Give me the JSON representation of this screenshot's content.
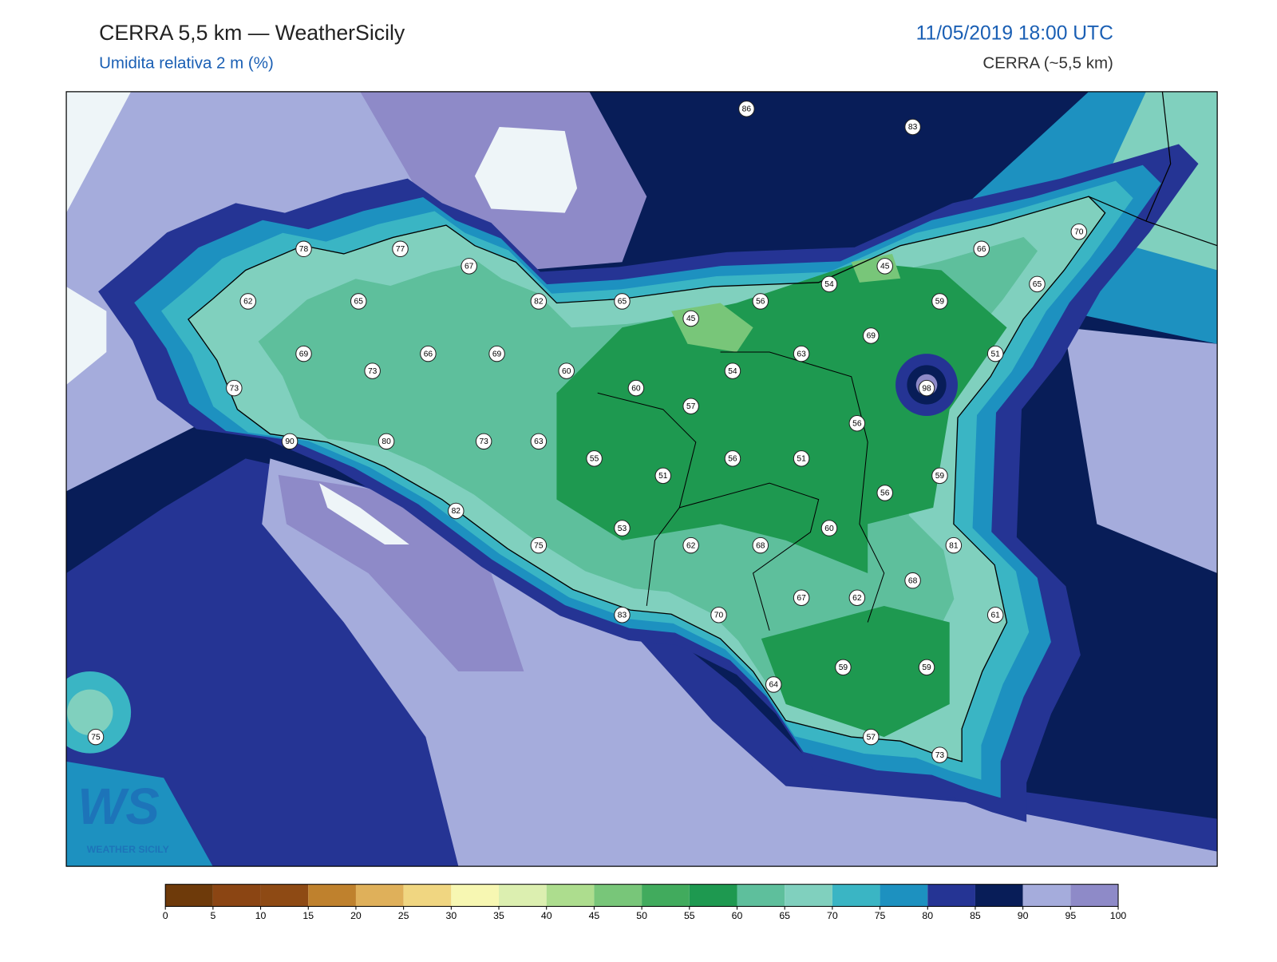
{
  "header": {
    "title": "CERRA 5,5 km — WeatherSicily",
    "subtitle": "Umidita relativa 2 m (%)",
    "datetime": "11/05/2019 18:00 UTC",
    "model": "CERRA (~5,5 km)"
  },
  "logo": {
    "text": "WS",
    "subtext": "WEATHER SICILY"
  },
  "map": {
    "stations": [
      86,
      83,
      78,
      77,
      67,
      70,
      66,
      45,
      54,
      65,
      62,
      65,
      82,
      65,
      56,
      59,
      45,
      69,
      69,
      66,
      69,
      63,
      51,
      73,
      60,
      54,
      73,
      60,
      98,
      57,
      56,
      90,
      80,
      73,
      63,
      55,
      56,
      51,
      51,
      59,
      56,
      82,
      53,
      60,
      75,
      62,
      68,
      81,
      68,
      67,
      62,
      83,
      70,
      61,
      59,
      59,
      64,
      57,
      75,
      73
    ]
  },
  "colorbar": {
    "ticks": [
      0,
      5,
      10,
      15,
      20,
      25,
      30,
      35,
      40,
      45,
      50,
      55,
      60,
      65,
      70,
      75,
      80,
      85,
      90,
      95,
      100
    ],
    "colors": [
      "#6e3a0a",
      "#8b4513",
      "#8e4a14",
      "#bf812d",
      "#dfb05a",
      "#f0d681",
      "#f7f7b2",
      "#dcefb0",
      "#addd8e",
      "#78c679",
      "#41ab5d",
      "#1e9950",
      "#5ebf9c",
      "#80d0be",
      "#3ab5c4",
      "#1d91c0",
      "#253494",
      "#081d58",
      "#a5acdc",
      "#8e8ac8"
    ]
  }
}
